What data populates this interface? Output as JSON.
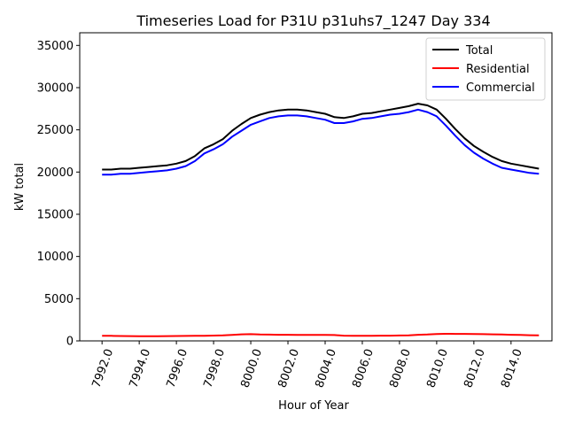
{
  "chart_data": {
    "type": "line",
    "title": "Timeseries Load for P31U p31uhs7_1247  Day 334",
    "xlabel": "Hour of Year",
    "ylabel": "kW total",
    "xlim": [
      7990.8,
      8016.2
    ],
    "ylim": [
      0,
      36500
    ],
    "x_ticks": [
      7992,
      7994,
      7996,
      7998,
      8000,
      8002,
      8004,
      8006,
      8008,
      8010,
      8012,
      8014
    ],
    "x_tick_labels": [
      "7992.0",
      "7994.0",
      "7996.0",
      "7998.0",
      "8000.0",
      "8002.0",
      "8004.0",
      "8006.0",
      "8008.0",
      "8010.0",
      "8012.0",
      "8014.0"
    ],
    "y_ticks": [
      0,
      5000,
      10000,
      15000,
      20000,
      25000,
      30000,
      35000
    ],
    "y_tick_labels": [
      "0",
      "5000",
      "10000",
      "15000",
      "20000",
      "25000",
      "30000",
      "35000"
    ],
    "grid": false,
    "legend_position": "top-right",
    "x": [
      7992,
      7992.5,
      7993,
      7993.5,
      7994,
      7994.5,
      7995,
      7995.5,
      7996,
      7996.5,
      7997,
      7997.5,
      7998,
      7998.5,
      7999,
      7999.5,
      8000,
      8000.5,
      8001,
      8001.5,
      8002,
      8002.5,
      8003,
      8003.5,
      8004,
      8004.5,
      8005,
      8005.5,
      8006,
      8006.5,
      8007,
      8007.5,
      8008,
      8008.5,
      8009,
      8009.5,
      8010,
      8010.5,
      8011,
      8011.5,
      8012,
      8012.5,
      8013,
      8013.5,
      8014,
      8014.5,
      8015,
      8015.5
    ],
    "series": [
      {
        "name": "Total",
        "color": "#000000",
        "values": [
          20300,
          20300,
          20400,
          20400,
          20500,
          20600,
          20700,
          20800,
          21000,
          21300,
          21900,
          22800,
          23300,
          23900,
          24900,
          25700,
          26400,
          26800,
          27100,
          27300,
          27400,
          27400,
          27300,
          27100,
          26900,
          26500,
          26400,
          26600,
          26900,
          27000,
          27200,
          27400,
          27600,
          27800,
          28100,
          27900,
          27400,
          26300,
          25100,
          24000,
          23100,
          22400,
          21800,
          21300,
          21000,
          20800,
          20600,
          20400
        ]
      },
      {
        "name": "Residential",
        "color": "#ff0000",
        "values": [
          600,
          600,
          580,
          570,
          560,
          560,
          560,
          570,
          580,
          590,
          600,
          610,
          630,
          650,
          700,
          780,
          800,
          760,
          740,
          720,
          720,
          700,
          700,
          710,
          710,
          690,
          620,
          610,
          600,
          610,
          620,
          620,
          640,
          660,
          720,
          760,
          820,
          840,
          830,
          830,
          820,
          800,
          780,
          750,
          720,
          700,
          670,
          650
        ]
      },
      {
        "name": "Commercial",
        "color": "#0000ff",
        "values": [
          19700,
          19700,
          19800,
          19800,
          19900,
          20000,
          20100,
          20200,
          20400,
          20700,
          21300,
          22200,
          22700,
          23300,
          24200,
          24900,
          25600,
          26000,
          26400,
          26600,
          26700,
          26700,
          26600,
          26400,
          26200,
          25800,
          25800,
          26000,
          26300,
          26400,
          26600,
          26800,
          26900,
          27100,
          27400,
          27100,
          26600,
          25500,
          24300,
          23200,
          22300,
          21600,
          21000,
          20500,
          20300,
          20100,
          19900,
          19800
        ]
      }
    ]
  }
}
